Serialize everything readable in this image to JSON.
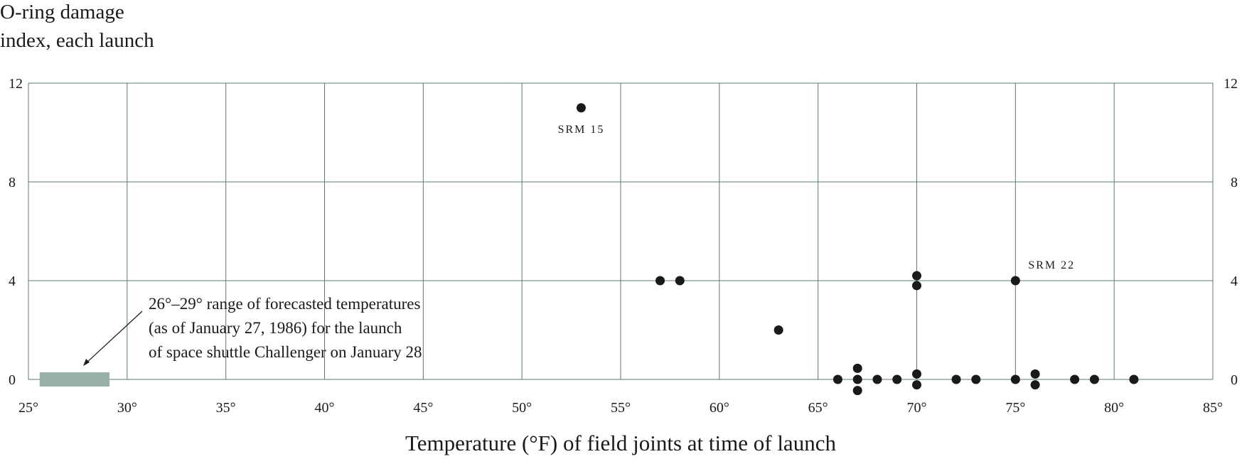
{
  "chart_data": {
    "type": "scatter",
    "title": "",
    "ylabel_lines": [
      "O-ring damage",
      "index, each launch"
    ],
    "xlabel": "Temperature (°F) of field joints at time of launch",
    "xlim": [
      25,
      85
    ],
    "ylim": [
      0,
      12
    ],
    "x_ticks": [
      25,
      30,
      35,
      40,
      45,
      50,
      55,
      60,
      65,
      70,
      75,
      80,
      85
    ],
    "x_tick_labels": [
      "25°",
      "30°",
      "35°",
      "40°",
      "45°",
      "50°",
      "55°",
      "60°",
      "65°",
      "70°",
      "75°",
      "80°",
      "85°"
    ],
    "y_ticks": [
      0,
      4,
      8,
      12
    ],
    "y_tick_labels": [
      "0",
      "4",
      "8",
      "12"
    ],
    "grid": true,
    "points": [
      {
        "x": 53,
        "y": 11
      },
      {
        "x": 57,
        "y": 4
      },
      {
        "x": 58,
        "y": 4
      },
      {
        "x": 63,
        "y": 2
      },
      {
        "x": 70,
        "y": 4.2
      },
      {
        "x": 70,
        "y": 3.8
      },
      {
        "x": 75,
        "y": 4
      },
      {
        "x": 66,
        "y": 0
      },
      {
        "x": 67,
        "y": 0.45
      },
      {
        "x": 67,
        "y": 0
      },
      {
        "x": 67,
        "y": -0.45
      },
      {
        "x": 68,
        "y": 0
      },
      {
        "x": 69,
        "y": 0
      },
      {
        "x": 70,
        "y": 0.22
      },
      {
        "x": 70,
        "y": -0.22
      },
      {
        "x": 72,
        "y": 0
      },
      {
        "x": 73,
        "y": 0
      },
      {
        "x": 75,
        "y": 0
      },
      {
        "x": 76,
        "y": 0.22
      },
      {
        "x": 76,
        "y": -0.22
      },
      {
        "x": 78,
        "y": 0
      },
      {
        "x": 79,
        "y": 0
      },
      {
        "x": 81,
        "y": 0
      }
    ],
    "point_labels": [
      {
        "text": "SRM 15",
        "x": 53,
        "y": 11
      },
      {
        "text": "SRM 22",
        "x": 75,
        "y": 4
      }
    ],
    "forecast_range": {
      "x_start": 26,
      "x_end": 29,
      "color": "#99b0aa"
    },
    "annotation_lines": [
      "26°–29° range of forecasted temperatures",
      "(as of January 27, 1986) for the launch",
      "of space shuttle Challenger on January 28"
    ],
    "colors": {
      "grid": "#5a7a70",
      "points": "#1a1a1a",
      "forecast": "#99b0aa"
    }
  }
}
